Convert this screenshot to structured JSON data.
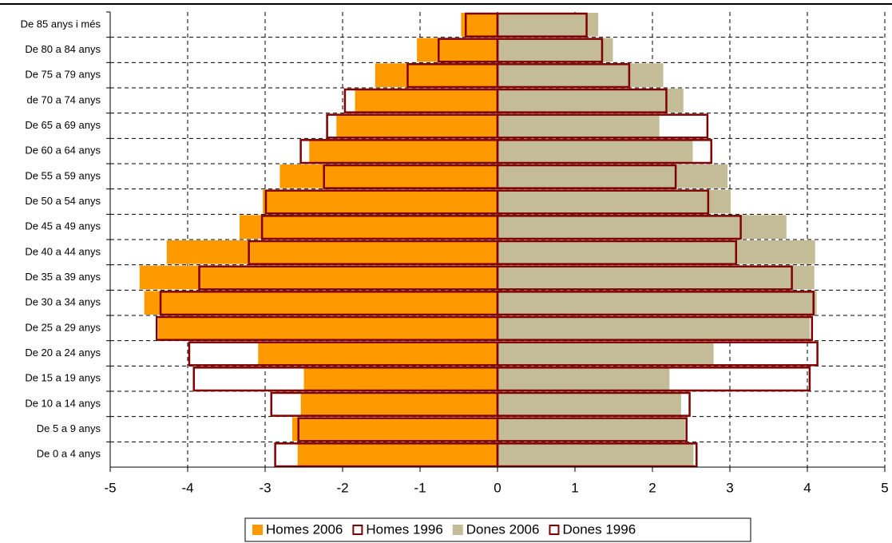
{
  "chart_data": {
    "type": "pyramid",
    "categories": [
      "De 0 a 4 anys",
      "De 5 a 9 anys",
      "De 10 a 14 anys",
      "De 15 a 19 anys",
      "De 20 a 24 anys",
      "De 25 a 29 anys",
      "De 30 a 34 anys",
      "De 35 a 39 anys",
      "De 40 a 44 anys",
      "De 45 a 49 anys",
      "De 50 a 54 anys",
      "De 55 a 59 anys",
      "De 60 a 64 anys",
      "De 65 a 69 anys",
      "de 70 a 74 anys",
      "De 75 a 79 anys",
      "De 80 a 84 anys",
      "De 85 anys i més"
    ],
    "series": [
      {
        "name": "Homes 2006",
        "color": "#ff9900",
        "style": "filled",
        "values": [
          -2.58,
          -2.65,
          -2.54,
          -2.5,
          -3.09,
          -4.38,
          -4.56,
          -4.62,
          -4.27,
          -3.33,
          -3.03,
          -2.81,
          -2.43,
          -2.08,
          -1.84,
          -1.58,
          -1.04,
          -0.47
        ]
      },
      {
        "name": "Homes 1996",
        "color": "#800000",
        "style": "outline",
        "values": [
          -2.87,
          -2.57,
          -2.92,
          -3.92,
          -3.98,
          -4.4,
          -4.35,
          -3.85,
          -3.21,
          -3.04,
          -2.99,
          -2.24,
          -2.54,
          -2.2,
          -1.97,
          -1.16,
          -0.76,
          -0.41
        ]
      },
      {
        "name": "Dones 2006",
        "color": "#c4bc96",
        "style": "filled",
        "values": [
          2.53,
          2.42,
          2.37,
          2.22,
          2.79,
          4.03,
          4.12,
          4.09,
          4.1,
          3.73,
          3.01,
          2.97,
          2.52,
          2.09,
          2.4,
          2.14,
          1.49,
          1.3
        ]
      },
      {
        "name": "Dones 1996",
        "color": "#800000",
        "style": "outline",
        "values": [
          2.57,
          2.44,
          2.48,
          4.03,
          4.13,
          4.06,
          4.08,
          3.8,
          3.08,
          3.14,
          2.72,
          2.3,
          2.76,
          2.71,
          2.18,
          1.7,
          1.35,
          1.15
        ]
      }
    ],
    "xlim": [
      -5,
      5
    ],
    "xticks": [
      -5,
      -4,
      -3,
      -2,
      -1,
      0,
      1,
      2,
      3,
      4,
      5
    ],
    "grid": true,
    "legend": "bottom"
  }
}
